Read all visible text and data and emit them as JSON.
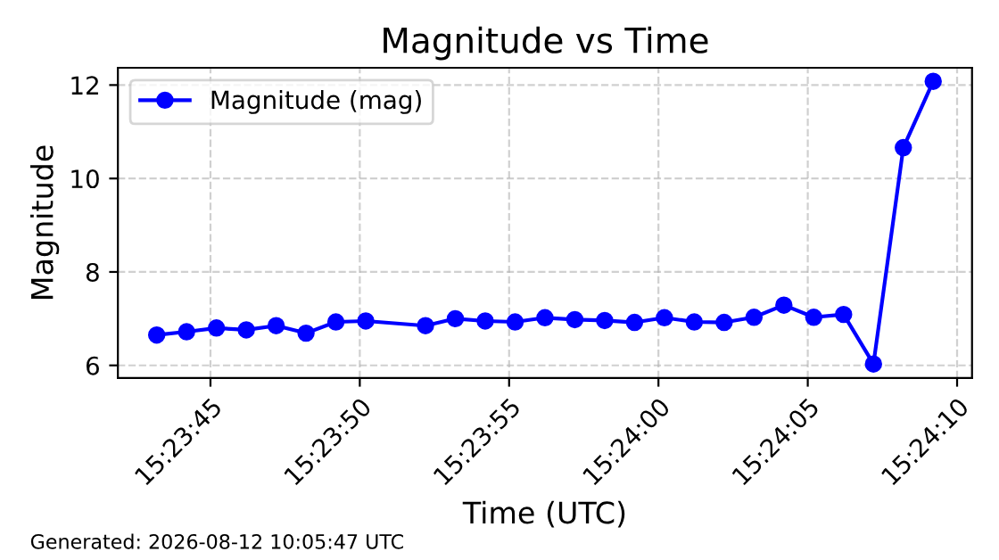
{
  "chart_data": {
    "type": "line",
    "title": "Magnitude vs Time",
    "xlabel": "Time (UTC)",
    "ylabel": "Magnitude",
    "x": [
      "2026-08-12T15:23:43.200",
      "2026-08-12T15:23:44.200",
      "2026-08-12T15:23:45.200",
      "2026-08-12T15:23:46.200",
      "2026-08-12T15:23:47.200",
      "2026-08-12T15:23:48.200",
      "2026-08-12T15:23:49.200",
      "2026-08-12T15:23:50.200",
      "2026-08-12T15:23:52.200",
      "2026-08-12T15:23:53.200",
      "2026-08-12T15:23:54.200",
      "2026-08-12T15:23:55.200",
      "2026-08-12T15:23:56.200",
      "2026-08-12T15:23:57.200",
      "2026-08-12T15:23:58.200",
      "2026-08-12T15:23:59.200",
      "2026-08-12T15:24:00.200",
      "2026-08-12T15:24:01.200",
      "2026-08-12T15:24:02.200",
      "2026-08-12T15:24:03.200",
      "2026-08-12T15:24:04.200",
      "2026-08-12T15:24:05.200",
      "2026-08-12T15:24:06.200",
      "2026-08-12T15:24:07.200",
      "2026-08-12T15:24:08.200",
      "2026-08-12T15:24:09.200"
    ],
    "series": [
      {
        "name": "Magnitude (mag)",
        "color": "#0000ff",
        "values": [
          6.65,
          6.72,
          6.8,
          6.76,
          6.85,
          6.69,
          6.93,
          6.95,
          6.85,
          7.0,
          6.95,
          6.93,
          7.02,
          6.98,
          6.96,
          6.92,
          7.02,
          6.93,
          6.92,
          7.03,
          7.29,
          7.03,
          7.09,
          6.03,
          10.66,
          12.08
        ]
      }
    ],
    "xlim": [
      "2026-08-12T15:23:41.900",
      "2026-08-12T15:24:10.500"
    ],
    "xticks": [
      {
        "value": "2026-08-12T15:23:45",
        "label": "15:23:45"
      },
      {
        "value": "2026-08-12T15:23:50",
        "label": "15:23:50"
      },
      {
        "value": "2026-08-12T15:23:55",
        "label": "15:23:55"
      },
      {
        "value": "2026-08-12T15:24:00",
        "label": "15:24:00"
      },
      {
        "value": "2026-08-12T15:24:05",
        "label": "15:24:05"
      },
      {
        "value": "2026-08-12T15:24:10",
        "label": "15:24:10"
      }
    ],
    "ylim": [
      5.73,
      12.37
    ],
    "yticks": [
      6,
      8,
      10,
      12
    ],
    "grid": true,
    "legend": "top left",
    "marker": "circle",
    "line_style": "solid",
    "annotations": [
      "Generated: 2026-08-12 10:05:47 UTC"
    ]
  }
}
